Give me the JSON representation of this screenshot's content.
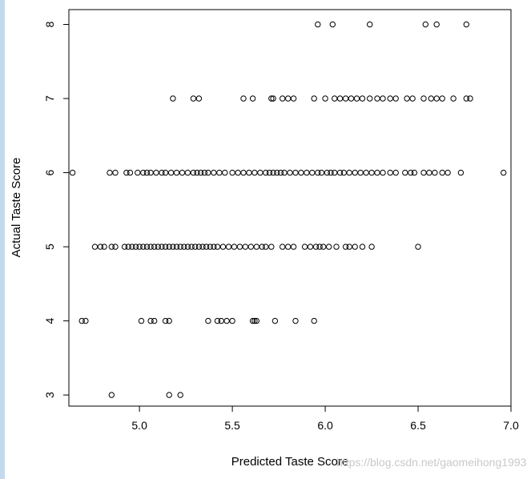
{
  "watermark": "https://blog.csdn.net/gaomeihong1993",
  "chart_data": {
    "type": "scatter",
    "title": "",
    "xlabel": "Predicted Taste Score",
    "ylabel": "Actual Taste Score",
    "xlim": [
      4.62,
      7.0
    ],
    "ylim": [
      2.85,
      8.2
    ],
    "xticks": [
      5.0,
      5.5,
      6.0,
      6.5,
      7.0
    ],
    "xtick_labels": [
      "5.0",
      "5.5",
      "6.0",
      "6.5",
      "7.0"
    ],
    "yticks": [
      3,
      4,
      5,
      6,
      7,
      8
    ],
    "ytick_labels": [
      "3",
      "4",
      "5",
      "6",
      "7",
      "8"
    ],
    "grid": false,
    "marker": "open-circle",
    "point_color": "#000000",
    "points": [
      [
        4.85,
        3
      ],
      [
        5.16,
        3
      ],
      [
        5.22,
        3
      ],
      [
        4.69,
        4
      ],
      [
        4.71,
        4
      ],
      [
        5.01,
        4
      ],
      [
        5.06,
        4
      ],
      [
        5.08,
        4
      ],
      [
        5.14,
        4
      ],
      [
        5.16,
        4
      ],
      [
        5.37,
        4
      ],
      [
        5.42,
        4
      ],
      [
        5.44,
        4
      ],
      [
        5.47,
        4
      ],
      [
        5.5,
        4
      ],
      [
        5.61,
        4
      ],
      [
        5.62,
        4
      ],
      [
        5.63,
        4
      ],
      [
        5.73,
        4
      ],
      [
        5.84,
        4
      ],
      [
        5.94,
        4
      ],
      [
        4.76,
        5
      ],
      [
        4.79,
        5
      ],
      [
        4.81,
        5
      ],
      [
        4.85,
        5
      ],
      [
        4.87,
        5
      ],
      [
        4.92,
        5
      ],
      [
        4.94,
        5
      ],
      [
        4.96,
        5
      ],
      [
        4.98,
        5
      ],
      [
        5.0,
        5
      ],
      [
        5.02,
        5
      ],
      [
        5.04,
        5
      ],
      [
        5.06,
        5
      ],
      [
        5.08,
        5
      ],
      [
        5.1,
        5
      ],
      [
        5.12,
        5
      ],
      [
        5.14,
        5
      ],
      [
        5.16,
        5
      ],
      [
        5.18,
        5
      ],
      [
        5.2,
        5
      ],
      [
        5.22,
        5
      ],
      [
        5.24,
        5
      ],
      [
        5.26,
        5
      ],
      [
        5.28,
        5
      ],
      [
        5.3,
        5
      ],
      [
        5.32,
        5
      ],
      [
        5.34,
        5
      ],
      [
        5.36,
        5
      ],
      [
        5.38,
        5
      ],
      [
        5.4,
        5
      ],
      [
        5.42,
        5
      ],
      [
        5.45,
        5
      ],
      [
        5.48,
        5
      ],
      [
        5.51,
        5
      ],
      [
        5.54,
        5
      ],
      [
        5.57,
        5
      ],
      [
        5.6,
        5
      ],
      [
        5.63,
        5
      ],
      [
        5.66,
        5
      ],
      [
        5.68,
        5
      ],
      [
        5.71,
        5
      ],
      [
        5.77,
        5
      ],
      [
        5.8,
        5
      ],
      [
        5.83,
        5
      ],
      [
        5.89,
        5
      ],
      [
        5.92,
        5
      ],
      [
        5.95,
        5
      ],
      [
        5.97,
        5
      ],
      [
        5.99,
        5
      ],
      [
        6.02,
        5
      ],
      [
        6.06,
        5
      ],
      [
        6.11,
        5
      ],
      [
        6.13,
        5
      ],
      [
        6.16,
        5
      ],
      [
        6.2,
        5
      ],
      [
        6.25,
        5
      ],
      [
        6.5,
        5
      ],
      [
        4.64,
        6
      ],
      [
        4.84,
        6
      ],
      [
        4.87,
        6
      ],
      [
        4.93,
        6
      ],
      [
        4.95,
        6
      ],
      [
        4.99,
        6
      ],
      [
        5.02,
        6
      ],
      [
        5.04,
        6
      ],
      [
        5.06,
        6
      ],
      [
        5.09,
        6
      ],
      [
        5.12,
        6
      ],
      [
        5.14,
        6
      ],
      [
        5.17,
        6
      ],
      [
        5.2,
        6
      ],
      [
        5.23,
        6
      ],
      [
        5.26,
        6
      ],
      [
        5.29,
        6
      ],
      [
        5.31,
        6
      ],
      [
        5.33,
        6
      ],
      [
        5.35,
        6
      ],
      [
        5.37,
        6
      ],
      [
        5.4,
        6
      ],
      [
        5.43,
        6
      ],
      [
        5.46,
        6
      ],
      [
        5.5,
        6
      ],
      [
        5.53,
        6
      ],
      [
        5.56,
        6
      ],
      [
        5.59,
        6
      ],
      [
        5.62,
        6
      ],
      [
        5.65,
        6
      ],
      [
        5.68,
        6
      ],
      [
        5.7,
        6
      ],
      [
        5.72,
        6
      ],
      [
        5.74,
        6
      ],
      [
        5.76,
        6
      ],
      [
        5.78,
        6
      ],
      [
        5.81,
        6
      ],
      [
        5.84,
        6
      ],
      [
        5.87,
        6
      ],
      [
        5.9,
        6
      ],
      [
        5.93,
        6
      ],
      [
        5.96,
        6
      ],
      [
        5.98,
        6
      ],
      [
        6.01,
        6
      ],
      [
        6.03,
        6
      ],
      [
        6.05,
        6
      ],
      [
        6.08,
        6
      ],
      [
        6.1,
        6
      ],
      [
        6.13,
        6
      ],
      [
        6.16,
        6
      ],
      [
        6.19,
        6
      ],
      [
        6.22,
        6
      ],
      [
        6.25,
        6
      ],
      [
        6.28,
        6
      ],
      [
        6.31,
        6
      ],
      [
        6.35,
        6
      ],
      [
        6.38,
        6
      ],
      [
        6.43,
        6
      ],
      [
        6.46,
        6
      ],
      [
        6.48,
        6
      ],
      [
        6.53,
        6
      ],
      [
        6.56,
        6
      ],
      [
        6.59,
        6
      ],
      [
        6.63,
        6
      ],
      [
        6.66,
        6
      ],
      [
        6.73,
        6
      ],
      [
        6.96,
        6
      ],
      [
        5.18,
        7
      ],
      [
        5.29,
        7
      ],
      [
        5.32,
        7
      ],
      [
        5.56,
        7
      ],
      [
        5.61,
        7
      ],
      [
        5.71,
        7
      ],
      [
        5.72,
        7
      ],
      [
        5.77,
        7
      ],
      [
        5.8,
        7
      ],
      [
        5.83,
        7
      ],
      [
        5.94,
        7
      ],
      [
        6.0,
        7
      ],
      [
        6.05,
        7
      ],
      [
        6.08,
        7
      ],
      [
        6.11,
        7
      ],
      [
        6.14,
        7
      ],
      [
        6.17,
        7
      ],
      [
        6.2,
        7
      ],
      [
        6.24,
        7
      ],
      [
        6.28,
        7
      ],
      [
        6.31,
        7
      ],
      [
        6.35,
        7
      ],
      [
        6.38,
        7
      ],
      [
        6.44,
        7
      ],
      [
        6.47,
        7
      ],
      [
        6.53,
        7
      ],
      [
        6.57,
        7
      ],
      [
        6.6,
        7
      ],
      [
        6.63,
        7
      ],
      [
        6.69,
        7
      ],
      [
        6.76,
        7
      ],
      [
        6.78,
        7
      ],
      [
        5.96,
        8
      ],
      [
        6.04,
        8
      ],
      [
        6.24,
        8
      ],
      [
        6.54,
        8
      ],
      [
        6.6,
        8
      ],
      [
        6.76,
        8
      ]
    ]
  }
}
